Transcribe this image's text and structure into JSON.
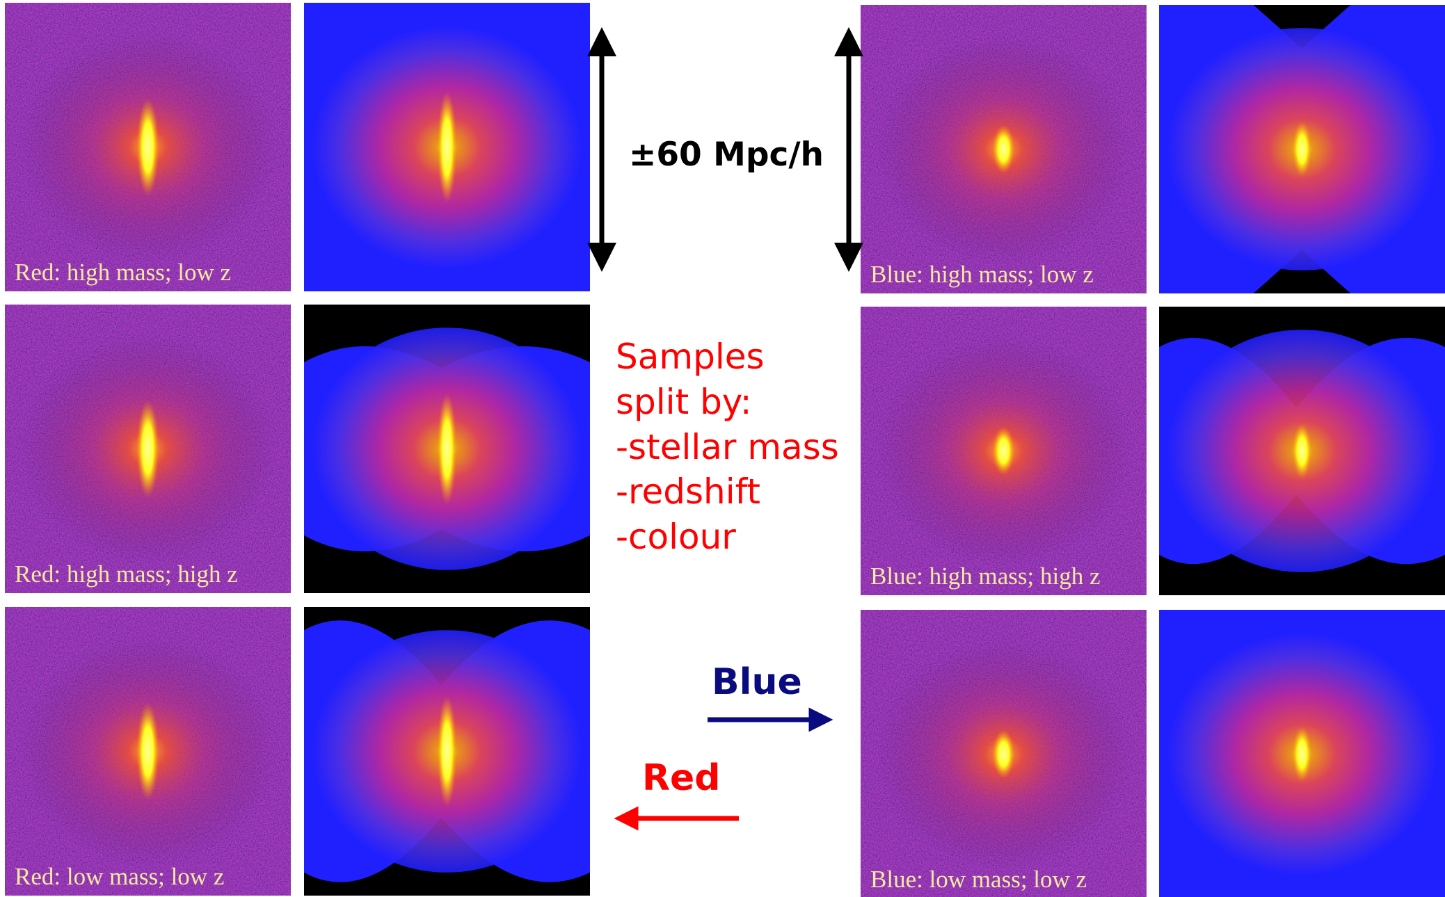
{
  "panels": [
    {
      "label": "Red: high mass; low z"
    },
    {
      "label": "Red: high mass; high z"
    },
    {
      "label": "Red: low mass; low z"
    },
    {
      "label": "Blue: high mass; low z"
    },
    {
      "label": "Blue: high mass; high z"
    },
    {
      "label": "Blue: low mass; low z"
    }
  ],
  "scale_label": "±60 Mpc/h",
  "notes": [
    "Samples",
    "split by:",
    "-stellar mass",
    "-redshift",
    "-colour"
  ],
  "blue_arrow_label": "Blue",
  "red_arrow_label": "Red"
}
